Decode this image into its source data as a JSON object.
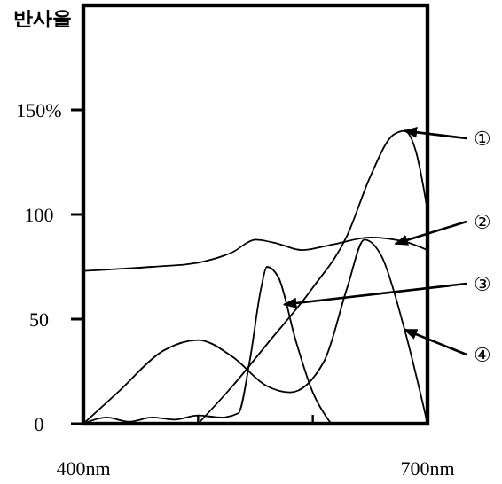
{
  "chart_data": {
    "type": "line",
    "ylabel": "반사율",
    "xlim": [
      400,
      700
    ],
    "ylim": [
      0,
      200
    ],
    "xticks": [
      {
        "value": 400,
        "label": "400nm"
      },
      {
        "value": 500,
        "label": null
      },
      {
        "value": 600,
        "label": null
      },
      {
        "value": 700,
        "label": "700nm"
      }
    ],
    "yticks": [
      0,
      50,
      100,
      {
        "value": 150,
        "label": "150%"
      }
    ],
    "line_style": "solid",
    "marker": "none",
    "series": [
      {
        "color": "#000000",
        "x": [
          500,
          530,
          560,
          600,
          630,
          650,
          670,
          680,
          690,
          700
        ],
        "values": [
          0,
          18,
          38,
          65,
          90,
          118,
          138,
          140,
          130,
          102
        ]
      },
      {
        "color": "#000000",
        "x": [
          400,
          430,
          460,
          500,
          530,
          550,
          570,
          590,
          620,
          650,
          680,
          700
        ],
        "values": [
          73,
          74,
          75,
          77,
          82,
          88,
          86,
          83,
          86,
          89,
          87,
          83
        ]
      },
      {
        "color": "#000000",
        "x": [
          400,
          420,
          440,
          460,
          480,
          500,
          520,
          535,
          545,
          555,
          560,
          570,
          585,
          600,
          616
        ],
        "values": [
          0,
          3,
          1,
          3,
          2,
          4,
          3,
          5,
          30,
          65,
          75,
          70,
          40,
          15,
          0
        ]
      },
      {
        "color": "#000000",
        "x": [
          400,
          430,
          470,
          500,
          530,
          560,
          580,
          610,
          630,
          645,
          660,
          680,
          700
        ],
        "values": [
          0,
          15,
          35,
          40,
          32,
          18,
          15,
          30,
          65,
          88,
          80,
          45,
          0
        ]
      }
    ],
    "annotations": [
      "①",
      {
        "text": "②",
        "x": 672,
        "y": 86
      },
      {
        "text": "③",
        "x": 575,
        "y": 57
      },
      {
        "text": "④",
        "x": 680,
        "y": 45
      }
    ]
  }
}
